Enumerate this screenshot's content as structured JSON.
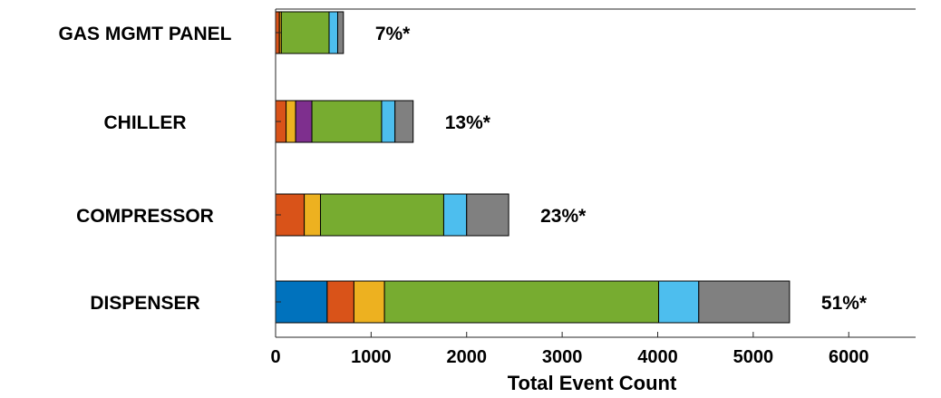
{
  "chart_data": {
    "type": "bar",
    "orientation": "horizontal",
    "stacked": true,
    "xlabel": "Total Event Count",
    "ylabel": "",
    "title": "",
    "xlim": [
      0,
      6700
    ],
    "x_ticks": [
      0,
      1000,
      2000,
      3000,
      4000,
      5000,
      6000
    ],
    "x_tick_labels": [
      "0",
      "1000",
      "2000",
      "3000",
      "4000",
      "5000",
      "6000"
    ],
    "grid": false,
    "legend": "none",
    "categories": [
      "GAS MGMT PANEL",
      "CHILLER",
      "COMPRESSOR",
      "DISPENSER"
    ],
    "percent_labels": [
      "7%*",
      "13%*",
      "23%*",
      "51%*"
    ],
    "series": [
      {
        "color": "#0072BD",
        "values": [
          0,
          0,
          0,
          540
        ]
      },
      {
        "color": "#D95319",
        "values": [
          40,
          110,
          300,
          280
        ]
      },
      {
        "color": "#EDB120",
        "values": [
          20,
          100,
          170,
          320
        ]
      },
      {
        "color": "#7E2F8E",
        "values": [
          0,
          170,
          0,
          0
        ]
      },
      {
        "color": "#77AC30",
        "values": [
          500,
          730,
          1290,
          2870
        ]
      },
      {
        "color": "#4DBEEE",
        "values": [
          90,
          140,
          240,
          420
        ]
      },
      {
        "color": "#808080",
        "values": [
          60,
          190,
          440,
          950
        ]
      }
    ]
  }
}
